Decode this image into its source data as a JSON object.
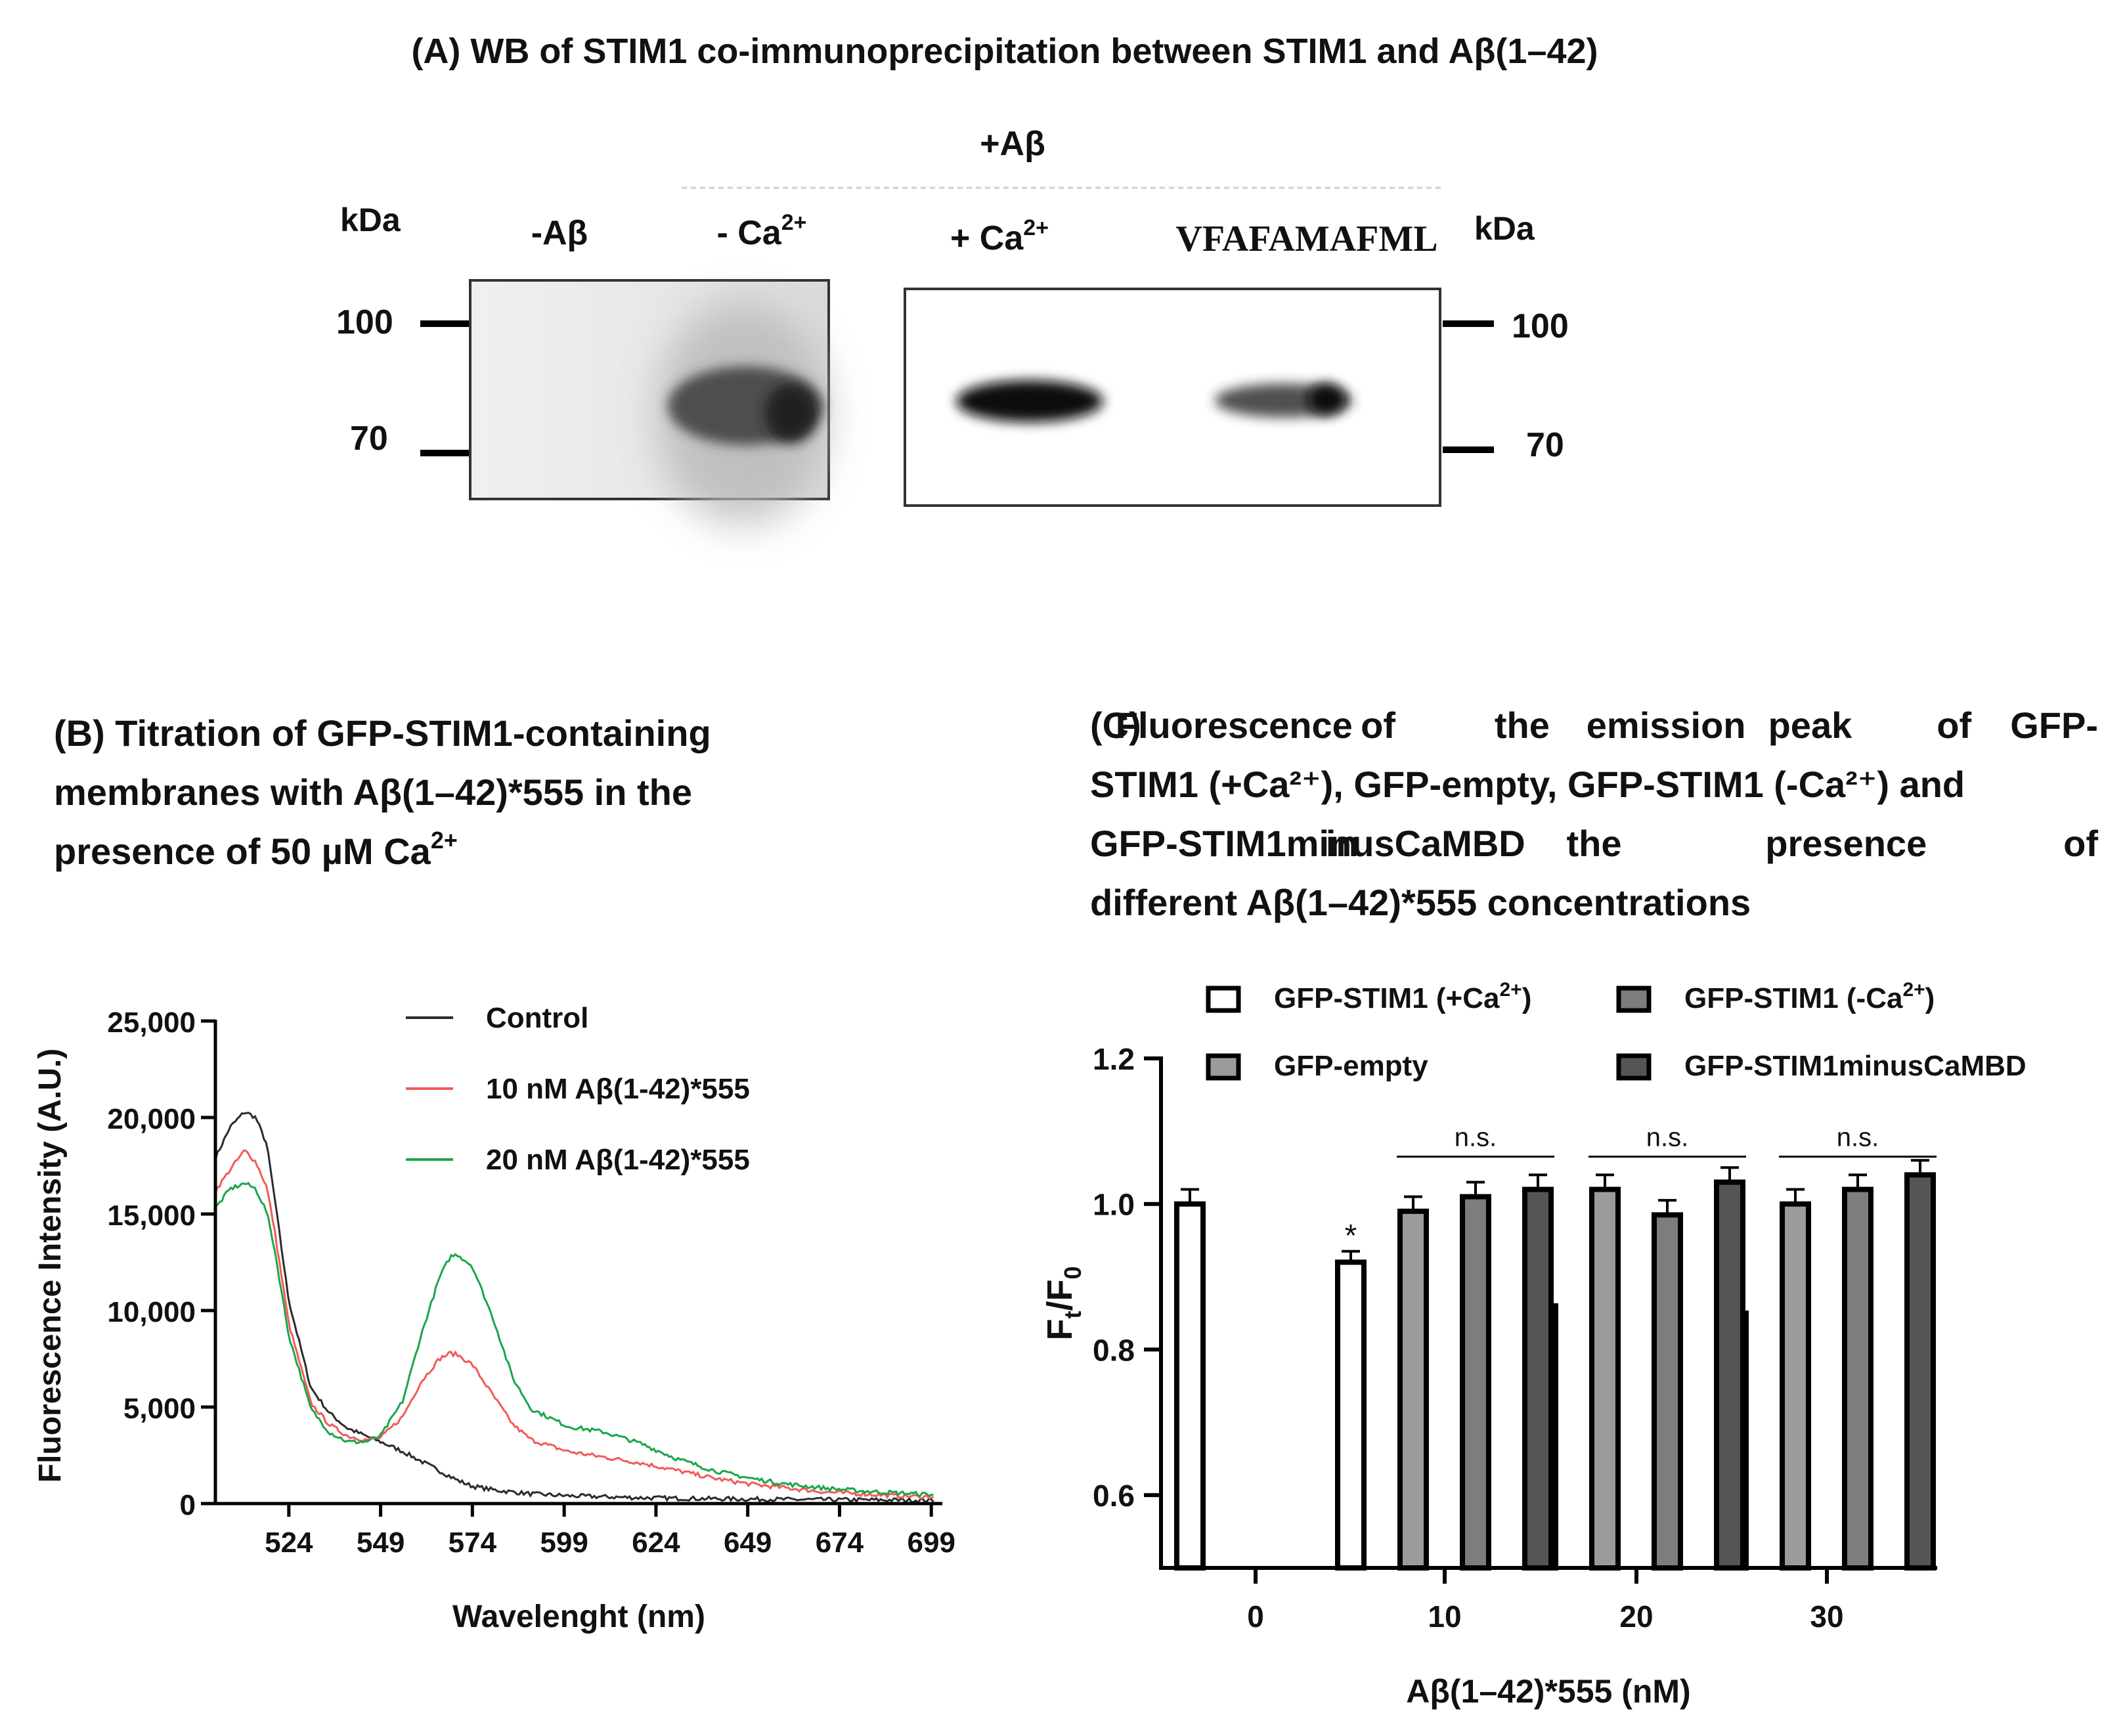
{
  "panel_a": {
    "title": "(A) WB of STIM1 co‑immunoprecipitation  between STIM1 and Aβ(1–42)",
    "group_label": "+Aβ",
    "kda_left": "kDa",
    "kda_right": "kDa",
    "lanes": [
      {
        "label": "-Aβ",
        "sup": ""
      },
      {
        "label": "- Ca",
        "sup": "2+"
      },
      {
        "label": "+ Ca",
        "sup": "2+"
      },
      {
        "label": "VFAFAMAFML",
        "sup": ""
      }
    ],
    "markers_left": [
      "100",
      "70"
    ],
    "markers_right": [
      "100",
      "70"
    ]
  },
  "panel_b": {
    "title_lines": [
      "(B) Titration of GFP-STIM1-containing",
      "membranes with Aβ(1–42)*555 in the",
      "presence of 50 µM Ca"
    ],
    "title_sup": "2+"
  },
  "panel_c": {
    "title_lines": [
      [
        "(C)",
        "Fluorescence",
        "of",
        "the",
        "emission",
        "peak",
        "of",
        "GFP-"
      ],
      [
        "STIM1 (+Ca²⁺), GFP-empty, GFP-STIM1 (-Ca²⁺) and"
      ],
      [
        "GFP-STIM1minusCaMBD",
        "in",
        "the",
        "presence",
        "of"
      ],
      [
        "different Aβ(1–42)*555 concentrations"
      ]
    ],
    "significance_label": "n.s.",
    "star_label": "*"
  },
  "colors": {
    "control": "#2b2b2b",
    "ab10": "#f25a5a",
    "ab20": "#1aa64a",
    "bar_white": "#ffffff",
    "bar_gray": "#9b9b9b",
    "bar_mid": "#7d7d7d",
    "bar_dark": "#555555"
  },
  "chart_data": [
    {
      "type": "line",
      "panel": "B",
      "xlabel": "Wavelenght (nm)",
      "ylabel": "Fluorescence Intensity (A.U.)",
      "xlim": [
        504,
        702
      ],
      "ylim": [
        0,
        25000
      ],
      "xticks": [
        524,
        549,
        574,
        599,
        624,
        649,
        674,
        699
      ],
      "yticks": [
        0,
        5000,
        10000,
        15000,
        20000,
        25000
      ],
      "ytick_labels": [
        "0",
        "5,000",
        "10,000",
        "15,000",
        "20,000",
        "25,000"
      ],
      "legend_position": "top-right",
      "series": [
        {
          "name": "Control",
          "color": "#2b2b2b",
          "x": [
            504,
            508,
            512,
            515,
            518,
            520,
            524,
            530,
            535,
            540,
            545,
            549,
            555,
            560,
            565,
            570,
            574,
            580,
            590,
            600,
            610,
            620,
            630,
            640,
            650,
            660,
            670,
            680,
            690,
            700
          ],
          "y": [
            17900,
            19500,
            20300,
            20000,
            18600,
            16000,
            10500,
            6000,
            4700,
            3900,
            3500,
            3200,
            2700,
            2200,
            1700,
            1200,
            900,
            700,
            500,
            400,
            350,
            300,
            270,
            250,
            230,
            210,
            200,
            190,
            180,
            170
          ]
        },
        {
          "name": "10 nM Aβ(1-42)*555",
          "color": "#f25a5a",
          "x": [
            504,
            508,
            512,
            515,
            518,
            520,
            524,
            530,
            535,
            540,
            545,
            549,
            555,
            560,
            565,
            568,
            570,
            574,
            580,
            585,
            590,
            600,
            610,
            620,
            630,
            640,
            650,
            660,
            670,
            680,
            690,
            700
          ],
          "y": [
            16200,
            17300,
            18300,
            17700,
            16400,
            14300,
            9300,
            5200,
            4100,
            3500,
            3300,
            3400,
            4500,
            6300,
            7500,
            7800,
            7700,
            7200,
            5500,
            4100,
            3300,
            2700,
            2400,
            2100,
            1700,
            1300,
            1000,
            800,
            600,
            500,
            400,
            350
          ]
        },
        {
          "name": "20 nM Aβ(1-42)*555",
          "color": "#1aa64a",
          "x": [
            504,
            508,
            512,
            515,
            518,
            520,
            524,
            530,
            535,
            540,
            545,
            549,
            555,
            560,
            565,
            568,
            570,
            574,
            580,
            585,
            590,
            600,
            610,
            620,
            630,
            640,
            650,
            660,
            670,
            680,
            690,
            700
          ],
          "y": [
            15300,
            16300,
            16600,
            16300,
            15100,
            13300,
            8700,
            4900,
            3700,
            3200,
            3200,
            3500,
            5300,
            8700,
            11700,
            12800,
            12900,
            12300,
            9400,
            6500,
            4900,
            4000,
            3700,
            3100,
            2300,
            1700,
            1300,
            1000,
            800,
            650,
            550,
            450
          ]
        }
      ]
    },
    {
      "type": "bar",
      "panel": "C",
      "xlabel": "Aβ(1–42)*555 (nM)",
      "ylabel": "Ft/F0",
      "ylim": [
        0.5,
        1.2
      ],
      "yticks": [
        0.6,
        0.8,
        1.0,
        1.2
      ],
      "ytick_labels": [
        "0.6",
        "0.8",
        "1.0",
        "1.2"
      ],
      "categories": [
        "0",
        "10",
        "20",
        "30"
      ],
      "legend_position": "top",
      "series": [
        {
          "name": "GFP-STIM1 (+Ca",
          "sup": "2+",
          "name_end": ")",
          "color": "#ffffff",
          "values": [
            1.0,
            0.92,
            0.86,
            0.85
          ],
          "errors": [
            0.02,
            0.015,
            0.04,
            0.035
          ],
          "stars": [
            false,
            true,
            true,
            true
          ]
        },
        {
          "name": "GFP-empty",
          "sup": "",
          "name_end": "",
          "color": "#9b9b9b",
          "values": [
            null,
            0.99,
            1.02,
            1.0
          ],
          "errors": [
            null,
            0.02,
            0.02,
            0.02
          ],
          "stars": [
            false,
            false,
            false,
            false
          ]
        },
        {
          "name": "GFP-STIM1 (-Ca",
          "sup": "2+",
          "name_end": ")",
          "color": "#7d7d7d",
          "values": [
            null,
            1.01,
            0.985,
            1.02
          ],
          "errors": [
            null,
            0.02,
            0.02,
            0.02
          ],
          "stars": [
            false,
            false,
            false,
            false
          ]
        },
        {
          "name": "GFP-STIM1minusCaMBD",
          "sup": "",
          "name_end": "",
          "color": "#555555",
          "values": [
            null,
            1.02,
            1.03,
            1.04
          ],
          "errors": [
            null,
            0.02,
            0.02,
            0.02
          ],
          "stars": [
            false,
            false,
            false,
            false
          ]
        }
      ],
      "significance": [
        {
          "group": "10",
          "label": "n.s."
        },
        {
          "group": "20",
          "label": "n.s."
        },
        {
          "group": "30",
          "label": "n.s."
        }
      ]
    }
  ]
}
